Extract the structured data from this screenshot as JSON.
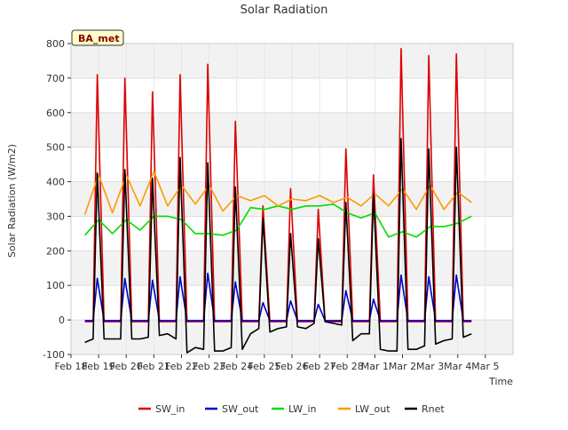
{
  "chart_data": {
    "type": "line",
    "title": "Solar Radiation",
    "xlabel": "Time",
    "ylabel": "Solar Radiation (W/m2)",
    "annotation": "BA_met",
    "xlim": [
      0,
      16
    ],
    "ylim": [
      -100,
      800
    ],
    "x_ticks": [
      {
        "value": 0,
        "label": "Feb 18"
      },
      {
        "value": 1,
        "label": "Feb 19"
      },
      {
        "value": 2,
        "label": "Feb 20"
      },
      {
        "value": 3,
        "label": "Feb 21"
      },
      {
        "value": 4,
        "label": "Feb 22"
      },
      {
        "value": 5,
        "label": "Feb 23"
      },
      {
        "value": 6,
        "label": "Feb 24"
      },
      {
        "value": 7,
        "label": "Feb 25"
      },
      {
        "value": 8,
        "label": "Feb 26"
      },
      {
        "value": 9,
        "label": "Feb 27"
      },
      {
        "value": 10,
        "label": "Feb 28"
      },
      {
        "value": 11,
        "label": "Mar 1"
      },
      {
        "value": 12,
        "label": "Mar 2"
      },
      {
        "value": 13,
        "label": "Mar 3"
      },
      {
        "value": 14,
        "label": "Mar 4"
      },
      {
        "value": 15,
        "label": "Mar 5"
      }
    ],
    "y_ticks": [
      -100,
      0,
      100,
      200,
      300,
      400,
      500,
      600,
      700,
      800
    ],
    "grid": true,
    "legend_position": "bottom",
    "series": [
      {
        "name": "SW_in",
        "color": "#dd0000",
        "x": [
          0.5,
          0.8,
          0.95,
          1.2,
          1.5,
          1.8,
          1.95,
          2.2,
          2.5,
          2.8,
          2.95,
          3.2,
          3.5,
          3.8,
          3.95,
          4.2,
          4.5,
          4.8,
          4.95,
          5.2,
          5.5,
          5.8,
          5.95,
          6.2,
          6.5,
          6.8,
          6.95,
          7.2,
          7.5,
          7.8,
          7.95,
          8.2,
          8.5,
          8.8,
          8.95,
          9.2,
          9.5,
          9.8,
          9.95,
          10.2,
          10.5,
          10.8,
          10.95,
          11.2,
          11.5,
          11.8,
          11.95,
          12.2,
          12.5,
          12.8,
          12.95,
          13.2,
          13.5,
          13.8,
          13.95,
          14.2,
          14.5
        ],
        "y": [
          -5,
          -5,
          710,
          -5,
          -5,
          -5,
          700,
          -5,
          -5,
          -5,
          660,
          -5,
          -5,
          -5,
          710,
          -5,
          -5,
          -5,
          740,
          -5,
          -5,
          -5,
          575,
          -5,
          -5,
          -5,
          330,
          -5,
          -5,
          -5,
          380,
          -5,
          -5,
          -5,
          320,
          -5,
          -5,
          -5,
          495,
          -5,
          -5,
          -5,
          420,
          -5,
          -5,
          -5,
          785,
          -5,
          -5,
          -5,
          765,
          -5,
          -5,
          -5,
          770,
          -5,
          -5
        ]
      },
      {
        "name": "SW_out",
        "color": "#0000cc",
        "x": [
          0.5,
          0.8,
          0.95,
          1.2,
          1.5,
          1.8,
          1.95,
          2.2,
          2.5,
          2.8,
          2.95,
          3.2,
          3.5,
          3.8,
          3.95,
          4.2,
          4.5,
          4.8,
          4.95,
          5.2,
          5.5,
          5.8,
          5.95,
          6.2,
          6.5,
          6.8,
          6.95,
          7.2,
          7.5,
          7.8,
          7.95,
          8.2,
          8.5,
          8.8,
          8.95,
          9.2,
          9.5,
          9.8,
          9.95,
          10.2,
          10.5,
          10.8,
          10.95,
          11.2,
          11.5,
          11.8,
          11.95,
          12.2,
          12.5,
          12.8,
          12.95,
          13.2,
          13.5,
          13.8,
          13.95,
          14.2,
          14.5
        ],
        "y": [
          -2,
          -2,
          120,
          -2,
          -2,
          -2,
          120,
          -2,
          -2,
          -2,
          115,
          -2,
          -2,
          -2,
          125,
          -2,
          -2,
          -2,
          135,
          -2,
          -2,
          -2,
          110,
          -2,
          -2,
          -2,
          50,
          -2,
          -2,
          -2,
          55,
          -2,
          -2,
          -2,
          45,
          -2,
          -2,
          -2,
          85,
          -2,
          -2,
          -2,
          60,
          -2,
          -2,
          -2,
          130,
          -2,
          -2,
          -2,
          125,
          -2,
          -2,
          -2,
          130,
          -2,
          -2
        ]
      },
      {
        "name": "LW_in",
        "color": "#00dd00",
        "x": [
          0.5,
          1.0,
          1.5,
          2.0,
          2.5,
          3.0,
          3.5,
          4.0,
          4.5,
          5.0,
          5.5,
          6.0,
          6.5,
          7.0,
          7.5,
          8.0,
          8.5,
          9.0,
          9.5,
          10.0,
          10.5,
          11.0,
          11.5,
          12.0,
          12.5,
          13.0,
          13.5,
          14.0,
          14.5
        ],
        "y": [
          245,
          290,
          250,
          290,
          260,
          300,
          300,
          290,
          250,
          250,
          245,
          260,
          325,
          320,
          330,
          320,
          330,
          330,
          335,
          310,
          295,
          310,
          240,
          255,
          240,
          270,
          270,
          280,
          300
        ]
      },
      {
        "name": "LW_out",
        "color": "#ff9900",
        "x": [
          0.5,
          1.0,
          1.5,
          2.0,
          2.5,
          3.0,
          3.5,
          4.0,
          4.5,
          5.0,
          5.5,
          6.0,
          6.5,
          7.0,
          7.5,
          8.0,
          8.5,
          9.0,
          9.5,
          10.0,
          10.5,
          11.0,
          11.5,
          12.0,
          12.5,
          13.0,
          13.5,
          14.0,
          14.5
        ],
        "y": [
          305,
          420,
          310,
          420,
          330,
          430,
          330,
          390,
          335,
          390,
          315,
          360,
          345,
          360,
          330,
          350,
          345,
          360,
          340,
          355,
          330,
          365,
          330,
          380,
          320,
          390,
          320,
          370,
          340
        ]
      },
      {
        "name": "Rnet",
        "color": "#000000",
        "x": [
          0.5,
          0.8,
          0.95,
          1.2,
          1.5,
          1.8,
          1.95,
          2.2,
          2.5,
          2.8,
          2.95,
          3.2,
          3.5,
          3.8,
          3.95,
          4.2,
          4.5,
          4.8,
          4.95,
          5.2,
          5.5,
          5.8,
          5.95,
          6.2,
          6.5,
          6.8,
          6.95,
          7.2,
          7.5,
          7.8,
          7.95,
          8.2,
          8.5,
          8.8,
          8.95,
          9.2,
          9.5,
          9.8,
          9.95,
          10.2,
          10.5,
          10.8,
          10.95,
          11.2,
          11.5,
          11.8,
          11.95,
          12.2,
          12.5,
          12.8,
          12.95,
          13.2,
          13.5,
          13.8,
          13.95,
          14.2,
          14.5
        ],
        "y": [
          -65,
          -55,
          425,
          -55,
          -55,
          -55,
          435,
          -55,
          -55,
          -50,
          410,
          -45,
          -40,
          -55,
          470,
          -95,
          -80,
          -85,
          455,
          -90,
          -90,
          -80,
          385,
          -85,
          -40,
          -25,
          295,
          -35,
          -25,
          -20,
          250,
          -20,
          -25,
          -10,
          235,
          -5,
          -10,
          -15,
          340,
          -60,
          -40,
          -40,
          365,
          -85,
          -90,
          -90,
          525,
          -85,
          -85,
          -75,
          495,
          -70,
          -60,
          -55,
          500,
          -50,
          -40
        ]
      }
    ]
  }
}
